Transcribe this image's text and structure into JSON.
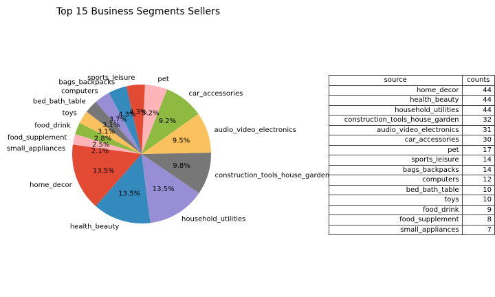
{
  "chart_data": {
    "type": "pie",
    "title": "Top 15 Business Segments Sellers",
    "categories": [
      "home_decor",
      "health_beauty",
      "household_utilities",
      "construction_tools_house_garden",
      "audio_video_electronics",
      "car_accessories",
      "pet",
      "sports_leisure",
      "bags_backpacks",
      "computers",
      "bed_bath_table",
      "toys",
      "food_drink",
      "food_supplement",
      "small_appliances"
    ],
    "values": [
      44,
      44,
      44,
      32,
      31,
      30,
      17,
      14,
      14,
      12,
      10,
      10,
      9,
      8,
      7
    ],
    "pct_labels": [
      "13.5%",
      "13.5%",
      "13.5%",
      "9.8%",
      "9.5%",
      "9.2%",
      "5.2%",
      "4.3%",
      "4.3%",
      "3.7%",
      "3.1%",
      "3.1%",
      "2.8%",
      "2.5%",
      "2.1%"
    ],
    "colors": [
      "#E24A33",
      "#348ABD",
      "#988ED5",
      "#777777",
      "#FBC15E",
      "#8EBA42",
      "#FFB5B8",
      "#E24A33",
      "#348ABD",
      "#988ED5",
      "#777777",
      "#FBC15E",
      "#8EBA42",
      "#FFB5B8",
      "#E24A33"
    ],
    "start_angle_deg": 180,
    "direction": "counterclockwise",
    "table": {
      "headers": [
        "source",
        "counts"
      ],
      "rows": [
        [
          "home_decor",
          "44"
        ],
        [
          "health_beauty",
          "44"
        ],
        [
          "household_utilities",
          "44"
        ],
        [
          "construction_tools_house_garden",
          "32"
        ],
        [
          "audio_video_electronics",
          "31"
        ],
        [
          "car_accessories",
          "30"
        ],
        [
          "pet",
          "17"
        ],
        [
          "sports_leisure",
          "14"
        ],
        [
          "bags_backpacks",
          "14"
        ],
        [
          "computers",
          "12"
        ],
        [
          "bed_bath_table",
          "10"
        ],
        [
          "toys",
          "10"
        ],
        [
          "food_drink",
          "9"
        ],
        [
          "food_supplement",
          "8"
        ],
        [
          "small_appliances",
          "7"
        ]
      ]
    }
  }
}
